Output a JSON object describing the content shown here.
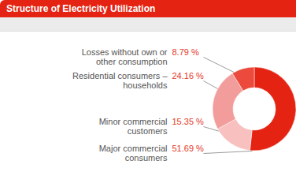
{
  "chart_data": {
    "type": "pie",
    "title": "Structure of Electricity Utilization",
    "categories": [
      "Major commercial consumers",
      "Minor commercial customers",
      "Residential consumers – households",
      "Losses without own or other consumption"
    ],
    "values": [
      51.69,
      15.35,
      24.16,
      8.79
    ],
    "value_labels": [
      "51.69 %",
      "15.35 %",
      "24.16 %",
      "8.79 %"
    ],
    "colors": [
      "#e42313",
      "#f8c0bf",
      "#f29d9c",
      "#ec4a3c"
    ],
    "data_labels": true
  }
}
